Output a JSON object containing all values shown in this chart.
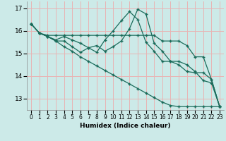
{
  "xlabel": "Humidex (Indice chaleur)",
  "bg_color": "#cceae8",
  "grid_color": "#e8b4b4",
  "line_color": "#1a6b5a",
  "xlim": [
    -0.5,
    23.5
  ],
  "ylim": [
    12.5,
    17.3
  ],
  "yticks": [
    13,
    14,
    15,
    16,
    17
  ],
  "xticks": [
    0,
    1,
    2,
    3,
    4,
    5,
    6,
    7,
    8,
    9,
    10,
    11,
    12,
    13,
    14,
    15,
    16,
    17,
    18,
    19,
    20,
    21,
    22,
    23
  ],
  "lines": [
    [
      16.3,
      15.9,
      15.8,
      15.8,
      15.8,
      15.8,
      15.8,
      15.8,
      15.8,
      15.8,
      15.8,
      15.8,
      15.8,
      15.8,
      15.8,
      15.8,
      15.55,
      15.55,
      15.55,
      15.35,
      14.85,
      14.85,
      13.85,
      12.65
    ],
    [
      16.3,
      15.9,
      15.75,
      15.6,
      15.75,
      15.6,
      15.45,
      15.25,
      15.05,
      15.6,
      16.0,
      16.45,
      16.85,
      16.5,
      15.5,
      15.1,
      14.65,
      14.65,
      14.5,
      14.2,
      14.15,
      14.15,
      13.85,
      12.65
    ],
    [
      16.3,
      15.9,
      15.75,
      15.55,
      15.55,
      15.3,
      15.05,
      15.25,
      15.35,
      15.1,
      15.3,
      15.55,
      16.1,
      16.95,
      16.75,
      15.45,
      15.1,
      14.65,
      14.65,
      14.5,
      14.2,
      13.8,
      13.7,
      12.65
    ],
    [
      16.3,
      15.9,
      15.75,
      15.55,
      15.3,
      15.1,
      14.85,
      14.65,
      14.45,
      14.25,
      14.05,
      13.85,
      13.65,
      13.45,
      13.25,
      13.05,
      12.85,
      12.7,
      12.65,
      12.65,
      12.65,
      12.65,
      12.65,
      12.65
    ]
  ]
}
